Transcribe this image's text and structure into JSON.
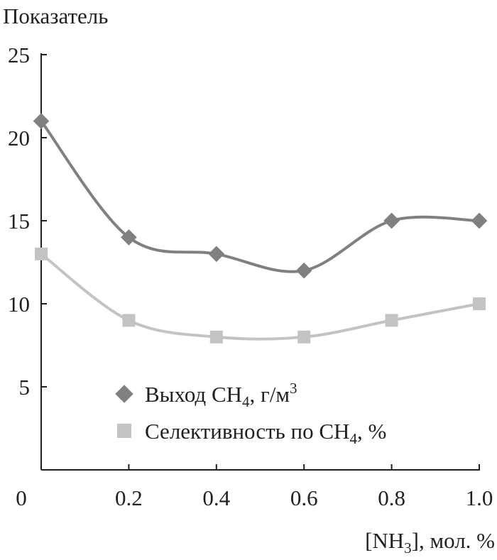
{
  "chart_data": {
    "type": "line",
    "title": "Показатель",
    "ylabel": "Показатель",
    "xlabel": {
      "pre": "[NH",
      "sub": "3",
      "post": "], мол. %"
    },
    "x": [
      0,
      0.2,
      0.4,
      0.6,
      0.8,
      1.0
    ],
    "xlim": [
      0,
      1.0
    ],
    "ylim": [
      0,
      25
    ],
    "x_tick_labels": [
      "0",
      "0.2",
      "0.4",
      "0.6",
      "0.8",
      "1.0"
    ],
    "y_ticks": [
      5,
      10,
      15,
      20,
      25
    ],
    "y_tick_labels": [
      "5",
      "10",
      "15",
      "20",
      "25"
    ],
    "grid": false,
    "legend_position": "bottom-right",
    "series": [
      {
        "name": "Выход CH4, г/м3",
        "label": {
          "pre": "Выход CH",
          "sub": "4",
          "post": ", г/м",
          "sup": "3"
        },
        "marker": "diamond",
        "color": "#808080",
        "values": [
          21,
          14,
          13,
          12,
          15,
          15
        ]
      },
      {
        "name": "Селективность по CH4, %",
        "label": {
          "pre": "Селективность по CH",
          "sub": "4",
          "post": ", %",
          "sup": ""
        },
        "marker": "square",
        "color": "#c3c3c3",
        "values": [
          13,
          9,
          8,
          8,
          9,
          10
        ]
      }
    ]
  }
}
